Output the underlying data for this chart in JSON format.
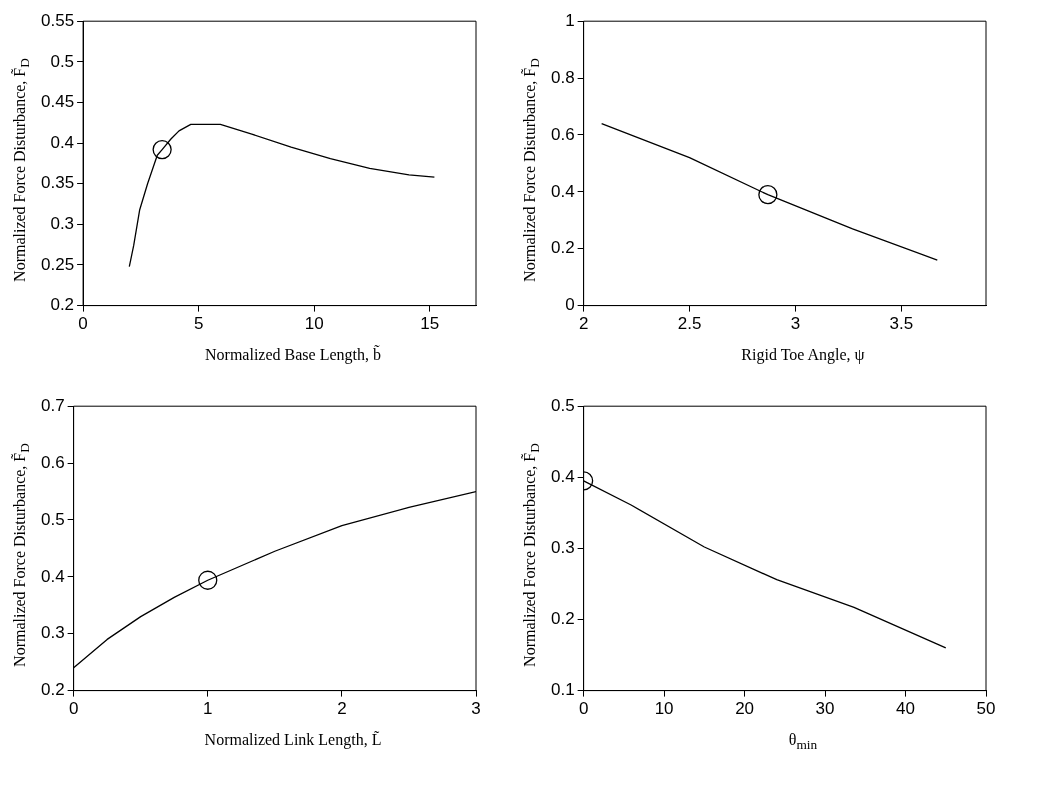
{
  "chart_data": [
    {
      "type": "line",
      "xlabel": "Normalized Base Length,  b̃",
      "ylabel": "Normalized Force Disturbance,  F̃$_{D}$",
      "xlim": [
        0,
        17
      ],
      "xticks": [
        0,
        5,
        10,
        15
      ],
      "ylim": [
        0.2,
        0.55
      ],
      "yticks": [
        0.2,
        0.25,
        0.3,
        0.35,
        0.4,
        0.45,
        0.5,
        0.55
      ],
      "series": [
        {
          "type": "line",
          "color": "#000000",
          "x": [
            2.0,
            2.19,
            2.45,
            2.79,
            3.21,
            3.42,
            3.8,
            4.15,
            4.66,
            5.94,
            7.3,
            9.0,
            10.7,
            12.4,
            14.1,
            15.2
          ],
          "values": [
            0.248,
            0.274,
            0.318,
            0.35,
            0.385,
            0.392,
            0.405,
            0.415,
            0.423,
            0.423,
            0.411,
            0.395,
            0.381,
            0.369,
            0.361,
            0.358
          ]
        },
        {
          "type": "scatter",
          "color": "#000000",
          "marker": "circle",
          "x": [
            3.42
          ],
          "values": [
            0.392
          ]
        }
      ]
    },
    {
      "type": "line",
      "xlabel": "Rigid Toe Angle,  ψ",
      "ylabel": "Normalized Force Disturbance,  F̃$_{D}$",
      "xlim": [
        2,
        3.9
      ],
      "xticks": [
        2,
        2.5,
        3,
        3.5
      ],
      "ylim": [
        0,
        1
      ],
      "yticks": [
        0,
        0.2,
        0.4,
        0.6,
        0.8,
        1
      ],
      "series": [
        {
          "type": "line",
          "color": "#000000",
          "x": [
            2.085,
            2.5,
            2.87,
            3.27,
            3.67
          ],
          "values": [
            0.64,
            0.52,
            0.39,
            0.27,
            0.16
          ]
        },
        {
          "type": "scatter",
          "color": "#000000",
          "marker": "circle",
          "x": [
            2.87
          ],
          "values": [
            0.39
          ]
        }
      ]
    },
    {
      "type": "line",
      "xlabel": "Normalized Link Length,  L̃",
      "ylabel": "Normalized Force Disturbance,  F̃$_{D}$",
      "xlim": [
        0,
        3
      ],
      "xticks": [
        0,
        1,
        2,
        3
      ],
      "ylim": [
        0.2,
        0.7
      ],
      "yticks": [
        0.2,
        0.3,
        0.4,
        0.5,
        0.6,
        0.7
      ],
      "series": [
        {
          "type": "line",
          "color": "#000000",
          "x": [
            0,
            0.25,
            0.5,
            0.75,
            1,
            1.5,
            2,
            2.5,
            3
          ],
          "values": [
            0.24,
            0.29,
            0.33,
            0.364,
            0.394,
            0.445,
            0.49,
            0.522,
            0.55
          ]
        },
        {
          "type": "scatter",
          "color": "#000000",
          "marker": "circle",
          "x": [
            1
          ],
          "values": [
            0.394
          ]
        }
      ]
    },
    {
      "type": "line",
      "xlabel": "θ$_{min}$",
      "ylabel": "Normalized Force Disturbance,  F̃$_{D}$",
      "xlim": [
        0,
        50
      ],
      "xticks": [
        0,
        10,
        20,
        30,
        40,
        50
      ],
      "ylim": [
        0.1,
        0.5
      ],
      "yticks": [
        0.1,
        0.2,
        0.3,
        0.4,
        0.5
      ],
      "series": [
        {
          "type": "line",
          "color": "#000000",
          "x": [
            0,
            5.9,
            15,
            24,
            33.6,
            45
          ],
          "values": [
            0.395,
            0.361,
            0.302,
            0.256,
            0.217,
            0.16
          ]
        },
        {
          "type": "scatter",
          "color": "#000000",
          "marker": "circle",
          "x": [
            0
          ],
          "values": [
            0.395
          ]
        }
      ]
    }
  ]
}
